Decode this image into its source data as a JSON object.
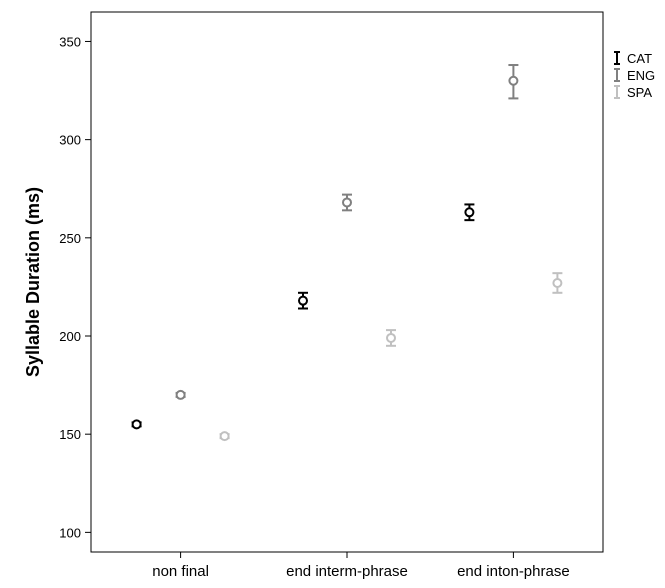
{
  "chart_data": {
    "type": "scatter",
    "ylabel": "Syllable Duration (ms)",
    "xlabel": "",
    "ylim": [
      90,
      365
    ],
    "yticks": [
      100,
      150,
      200,
      250,
      300,
      350
    ],
    "categories": [
      "non final",
      "end interm-phrase",
      "end inton-phrase"
    ],
    "grid": false,
    "legend_position": "right",
    "series": [
      {
        "name": "CAT",
        "color": "#000000",
        "values": [
          155,
          218,
          263
        ],
        "lower": [
          154,
          214,
          259
        ],
        "upper": [
          156,
          222,
          267
        ]
      },
      {
        "name": "ENG",
        "color": "#808080",
        "values": [
          170,
          268,
          330
        ],
        "lower": [
          169,
          264,
          321
        ],
        "upper": [
          171,
          272,
          338
        ]
      },
      {
        "name": "SPA",
        "color": "#c0c0c0",
        "values": [
          149,
          199,
          227
        ],
        "lower": [
          148,
          195,
          222
        ],
        "upper": [
          150,
          203,
          232
        ]
      }
    ]
  }
}
